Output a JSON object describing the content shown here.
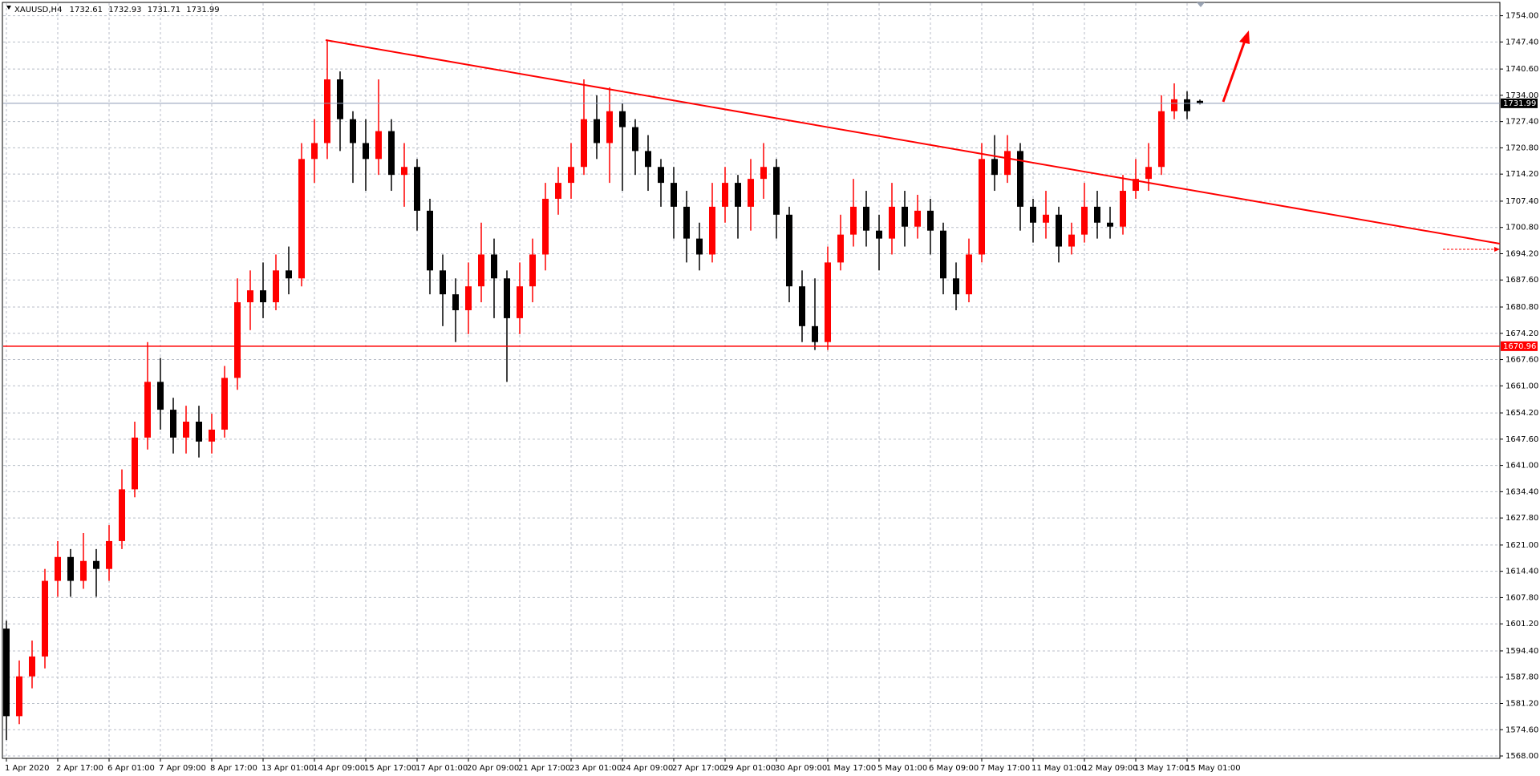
{
  "chart_data": {
    "type": "candlestick",
    "symbol": "XAUUSD,H4",
    "up_color": "#ff0000",
    "down_color": "#000000",
    "grid": true,
    "categories": [
      "1 Apr 2020",
      null,
      null,
      null,
      "2 Apr 17:00",
      null,
      null,
      null,
      "6 Apr 01:00",
      null,
      null,
      null,
      "7 Apr 09:00",
      null,
      null,
      null,
      "8 Apr 17:00",
      null,
      null,
      null,
      "13 Apr 01:00",
      null,
      null,
      null,
      "14 Apr 09:00",
      null,
      null,
      null,
      "15 Apr 17:00",
      null,
      null,
      null,
      "17 Apr 01:00",
      null,
      null,
      null,
      "20 Apr 09:00",
      null,
      null,
      null,
      "21 Apr 17:00",
      null,
      null,
      null,
      "23 Apr 01:00",
      null,
      null,
      null,
      "24 Apr 09:00",
      null,
      null,
      null,
      "27 Apr 17:00",
      null,
      null,
      null,
      "29 Apr 01:00",
      null,
      null,
      null,
      "30 Apr 09:00",
      null,
      null,
      null,
      "1 May 17:00",
      null,
      null,
      null,
      "5 May 01:00",
      null,
      null,
      null,
      "6 May 09:00",
      null,
      null,
      null,
      "7 May 17:00",
      null,
      null,
      null,
      "11 May 01:00",
      null,
      null,
      null,
      "12 May 09:00",
      null,
      null,
      null,
      "13 May 17:00",
      null,
      null,
      null,
      "15 May 01:00",
      null
    ],
    "open": [
      1600,
      1578,
      1588,
      1593,
      1612,
      1618,
      1612,
      1617,
      1615,
      1622,
      1635,
      1648,
      1662,
      1655,
      1648,
      1652,
      1647,
      1650,
      1663,
      1682,
      1685,
      1682,
      1690,
      1688,
      1718,
      1722,
      1738,
      1728,
      1722,
      1718,
      1725,
      1714,
      1716,
      1705,
      1690,
      1684,
      1680,
      1686,
      1694,
      1688,
      1678,
      1686,
      1694,
      1708,
      1712,
      1716,
      1728,
      1722,
      1730,
      1726,
      1720,
      1716,
      1712,
      1706,
      1698,
      1694,
      1706,
      1712,
      1706,
      1713,
      1716,
      1704,
      1686,
      1676,
      1672,
      1692,
      1699,
      1706,
      1700,
      1698,
      1706,
      1701,
      1705,
      1700,
      1688,
      1684,
      1694,
      1718,
      1714,
      1720,
      1706,
      1702,
      1704,
      1696,
      1699,
      1706,
      1702,
      1701,
      1710,
      1713,
      1716,
      1730,
      1733,
      1732.61
    ],
    "high": [
      1602,
      1592,
      1597,
      1615,
      1622,
      1620,
      1624,
      1620,
      1626,
      1640,
      1652,
      1672,
      1668,
      1658,
      1656,
      1656,
      1654,
      1666,
      1688,
      1690,
      1692,
      1694,
      1696,
      1722,
      1728,
      1748,
      1740,
      1730,
      1728,
      1738,
      1728,
      1722,
      1718,
      1708,
      1694,
      1688,
      1692,
      1702,
      1698,
      1690,
      1692,
      1698,
      1712,
      1716,
      1722,
      1738,
      1734,
      1736,
      1732,
      1728,
      1724,
      1718,
      1716,
      1710,
      1702,
      1712,
      1716,
      1714,
      1718,
      1722,
      1718,
      1706,
      1690,
      1688,
      1696,
      1704,
      1713,
      1710,
      1704,
      1712,
      1710,
      1709,
      1708,
      1702,
      1692,
      1698,
      1722,
      1724,
      1724,
      1722,
      1708,
      1710,
      1706,
      1702,
      1712,
      1710,
      1706,
      1714,
      1718,
      1722,
      1734,
      1737,
      1735,
      1732.93
    ],
    "low": [
      1572,
      1576,
      1585,
      1590,
      1608,
      1608,
      1610,
      1608,
      1612,
      1620,
      1633,
      1645,
      1650,
      1644,
      1644,
      1643,
      1644,
      1648,
      1660,
      1675,
      1678,
      1680,
      1684,
      1686,
      1712,
      1718,
      1720,
      1712,
      1710,
      1714,
      1710,
      1706,
      1700,
      1684,
      1676,
      1672,
      1674,
      1682,
      1678,
      1662,
      1674,
      1682,
      1690,
      1704,
      1708,
      1714,
      1718,
      1712,
      1710,
      1714,
      1710,
      1706,
      1698,
      1692,
      1690,
      1692,
      1702,
      1698,
      1700,
      1708,
      1698,
      1682,
      1672,
      1670,
      1670,
      1690,
      1696,
      1696,
      1690,
      1694,
      1696,
      1698,
      1694,
      1684,
      1680,
      1682,
      1692,
      1710,
      1712,
      1700,
      1697,
      1698,
      1692,
      1694,
      1697,
      1698,
      1698,
      1699,
      1708,
      1710,
      1714,
      1728,
      1728,
      1731.71
    ],
    "close": [
      1578,
      1588,
      1593,
      1612,
      1618,
      1612,
      1617,
      1615,
      1622,
      1635,
      1648,
      1662,
      1655,
      1648,
      1652,
      1647,
      1650,
      1663,
      1682,
      1685,
      1682,
      1690,
      1688,
      1718,
      1722,
      1738,
      1728,
      1722,
      1718,
      1725,
      1714,
      1716,
      1705,
      1690,
      1684,
      1680,
      1686,
      1694,
      1688,
      1678,
      1686,
      1694,
      1708,
      1712,
      1716,
      1728,
      1722,
      1730,
      1726,
      1720,
      1716,
      1712,
      1706,
      1698,
      1694,
      1706,
      1712,
      1706,
      1713,
      1716,
      1704,
      1686,
      1676,
      1672,
      1692,
      1699,
      1706,
      1700,
      1698,
      1706,
      1701,
      1705,
      1700,
      1688,
      1684,
      1694,
      1718,
      1714,
      1720,
      1706,
      1702,
      1704,
      1696,
      1699,
      1706,
      1702,
      1701,
      1710,
      1713,
      1716,
      1730,
      1733,
      1730,
      1731.99
    ],
    "hlines": [
      {
        "value": 1670.96,
        "color": "#ff0000"
      }
    ],
    "bid_color": "#8c9ab4",
    "ylim": [
      1567.4,
      1757.14
    ],
    "yticks": [
      {
        "value": 1568,
        "label": "1568.00"
      },
      {
        "value": 1574.6,
        "label": "1574.60"
      },
      {
        "value": 1581.2,
        "label": "1581.20"
      },
      {
        "value": 1587.8,
        "label": "1587.80"
      },
      {
        "value": 1594.4,
        "label": "1594.40"
      },
      {
        "value": 1601.2,
        "label": "1601.20"
      },
      {
        "value": 1607.8,
        "label": "1607.80"
      },
      {
        "value": 1614.4,
        "label": "1614.40"
      },
      {
        "value": 1621,
        "label": "1621.00"
      },
      {
        "value": 1627.8,
        "label": "1627.80"
      },
      {
        "value": 1634.4,
        "label": "1634.40"
      },
      {
        "value": 1641,
        "label": "1641.00"
      },
      {
        "value": 1647.6,
        "label": "1647.60"
      },
      {
        "value": 1654.2,
        "label": "1654.20"
      },
      {
        "value": 1661,
        "label": "1661.00"
      },
      {
        "value": 1667.6,
        "label": "1667.60"
      },
      {
        "value": 1674.2,
        "label": "1674.20"
      },
      {
        "value": 1680.8,
        "label": "1680.80"
      },
      {
        "value": 1687.6,
        "label": "1687.60"
      },
      {
        "value": 1694.2,
        "label": "1694.20"
      },
      {
        "value": 1700.8,
        "label": "1700.80"
      },
      {
        "value": 1707.4,
        "label": "1707.40"
      },
      {
        "value": 1714.2,
        "label": "1714.20"
      },
      {
        "value": 1720.8,
        "label": "1720.80"
      },
      {
        "value": 1727.4,
        "label": "1727.40"
      },
      {
        "value": 1734,
        "label": "1734.00"
      },
      {
        "value": 1740.6,
        "label": "1740.60"
      },
      {
        "value": 1747.4,
        "label": "1747.40"
      },
      {
        "value": 1754,
        "label": "1754.00"
      }
    ]
  }
}
